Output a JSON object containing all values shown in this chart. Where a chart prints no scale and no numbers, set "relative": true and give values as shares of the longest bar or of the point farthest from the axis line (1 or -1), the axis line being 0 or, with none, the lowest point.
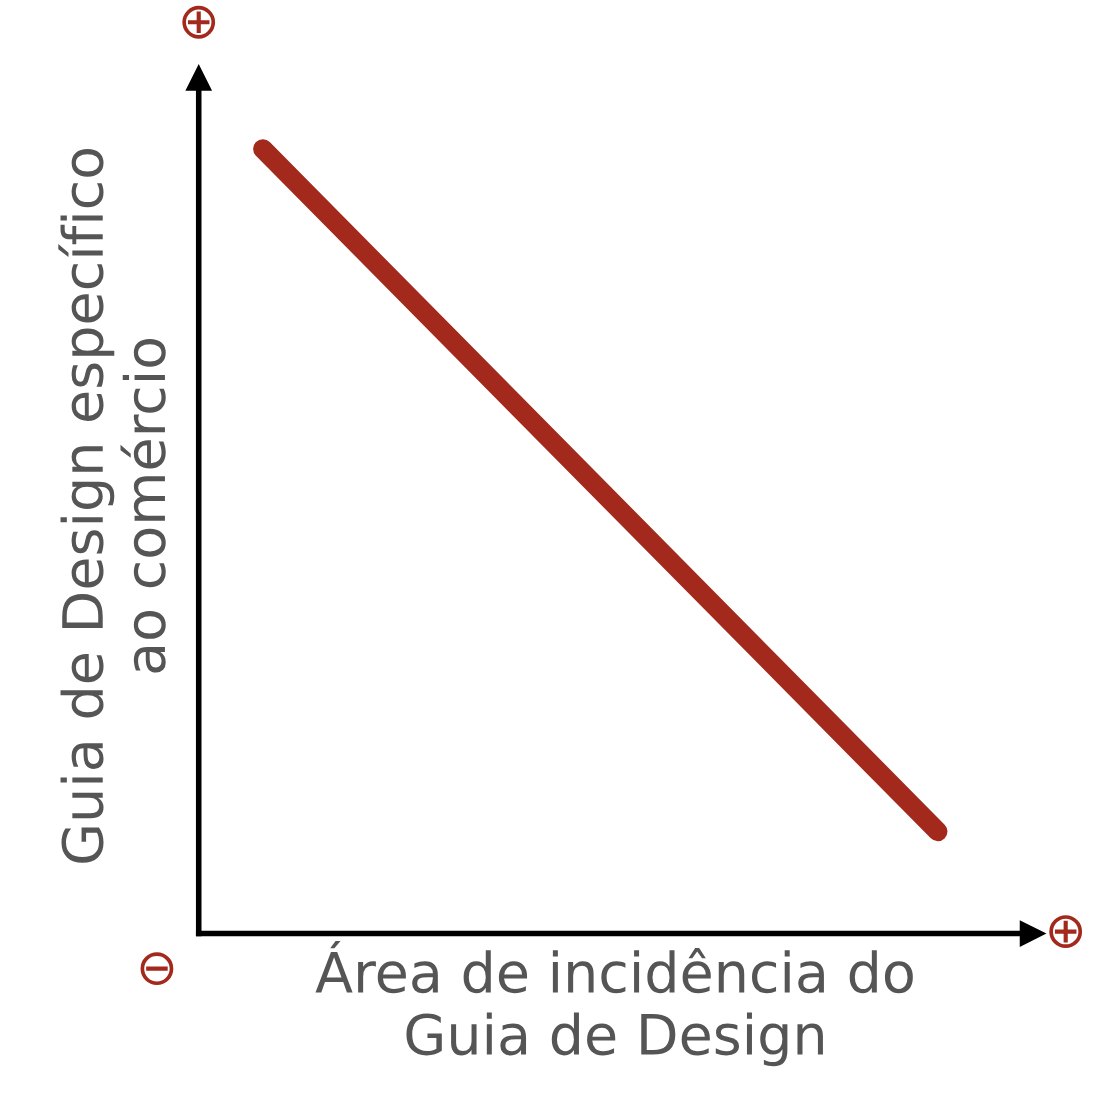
{
  "chart_data": {
    "type": "line",
    "relative": true,
    "xlabel": "Área de incidência do\nGuia de Design",
    "ylabel": "Guia de Design específico\nao comércio",
    "categories": [
      null,
      null
    ],
    "series": [
      {
        "color": "#a3291c",
        "values": [
          1,
          0.13
        ]
      }
    ],
    "annotations": [
      "⊕",
      "⊕",
      "⊖"
    ],
    "marker": "none",
    "line_style": "solid"
  }
}
